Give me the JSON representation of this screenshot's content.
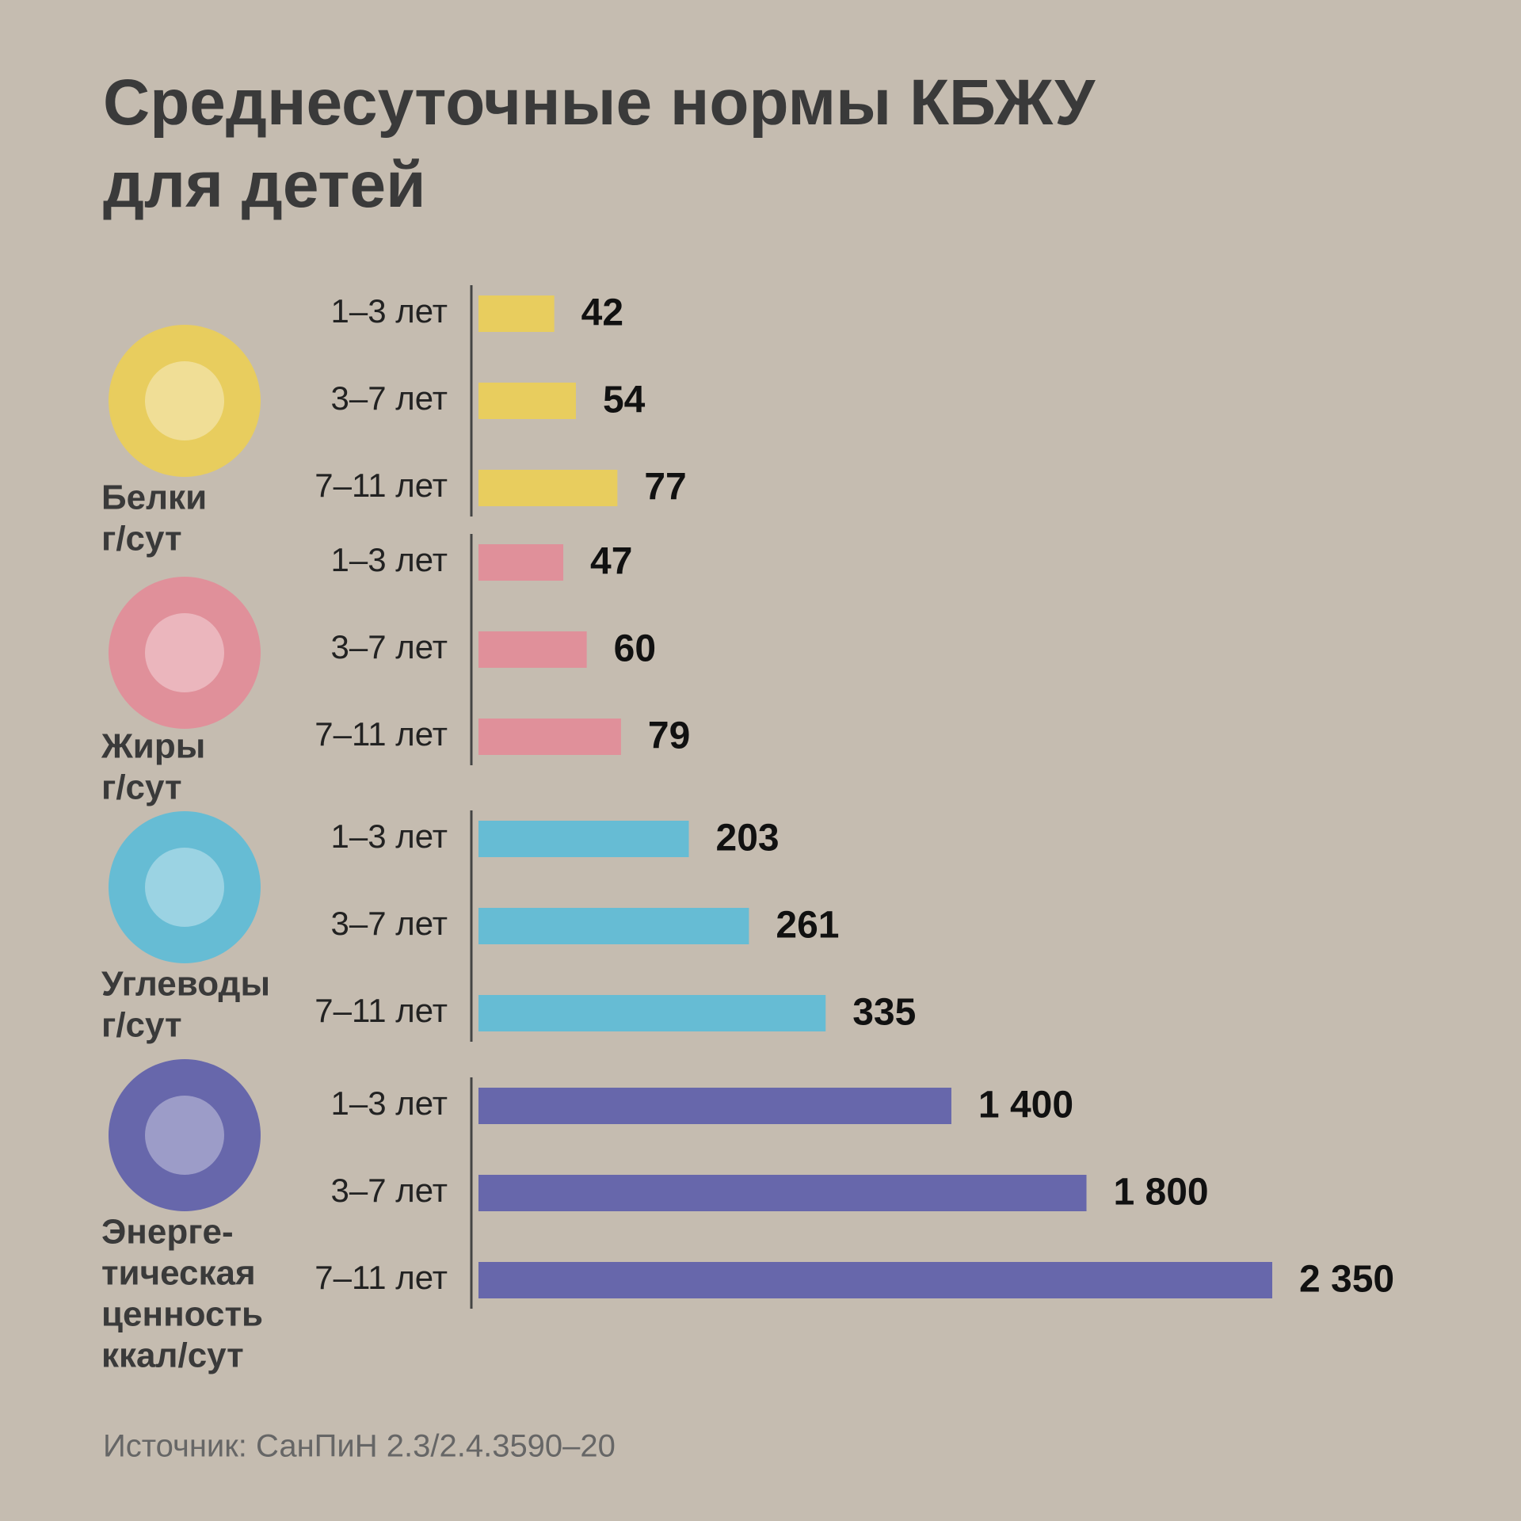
{
  "title": "Среднесуточные нормы КБЖУ для детей",
  "chart_data": [
    {
      "type": "bar",
      "orientation": "horizontal",
      "label_lines": [
        "Белки",
        "г/сут"
      ],
      "categories": [
        "1–3 лет",
        "3–7 лет",
        "7–11 лет"
      ],
      "values": [
        42,
        54,
        77
      ],
      "color": "#e8cd5e",
      "xlim": [
        0,
        440
      ]
    },
    {
      "type": "bar",
      "orientation": "horizontal",
      "label_lines": [
        "Жиры",
        "г/сут"
      ],
      "categories": [
        "1–3 лет",
        "3–7 лет",
        "7–11 лет"
      ],
      "values": [
        47,
        60,
        79
      ],
      "color": "#e0909a",
      "xlim": [
        0,
        440
      ]
    },
    {
      "type": "bar",
      "orientation": "horizontal",
      "label_lines": [
        "Углеводы",
        "г/сут"
      ],
      "categories": [
        "1–3 лет",
        "3–7 лет",
        "7–11 лет"
      ],
      "values": [
        203,
        261,
        335
      ],
      "color": "#66bcd4",
      "xlim": [
        0,
        766
      ]
    },
    {
      "type": "bar",
      "orientation": "horizontal",
      "label_lines": [
        "Энерге-",
        "тическая",
        "ценность",
        "ккал/сут"
      ],
      "categories": [
        "1–3 лет",
        "3–7 лет",
        "7–11 лет"
      ],
      "values": [
        1400,
        1800,
        2350
      ],
      "value_labels": [
        "1 400",
        "1 800",
        "2 350"
      ],
      "color": "#6767ab",
      "xlim": [
        0,
        2350
      ]
    }
  ],
  "source": "Источник: СанПиН 2.3/2.4.3590–20"
}
